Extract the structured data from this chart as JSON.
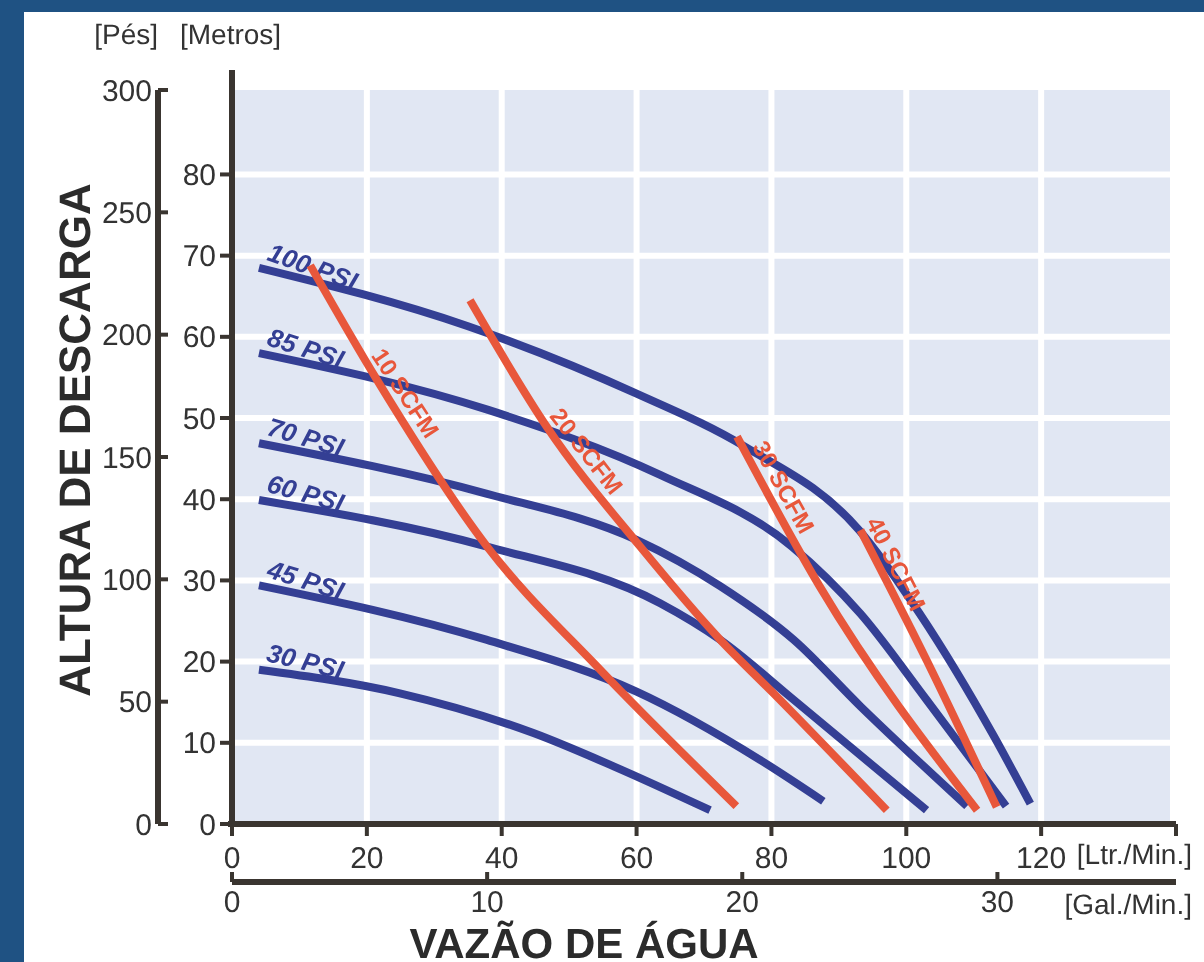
{
  "chart_data": {
    "type": "line",
    "ylabel": "[Metros]",
    "y2label": "[Pés]",
    "xlabel": "[Ltr./Min.]",
    "x2label": "[Gal./Min.]",
    "annotations": [
      "ALTURA DE DESCARGA",
      "VAZÃO DE ÁGUA"
    ],
    "xlim": [
      0,
      140
    ],
    "xticks": [
      0,
      20,
      40,
      60,
      80,
      100,
      120,
      {
        "value": 140,
        "label": null
      }
    ],
    "x2lim": [
      0,
      37
    ],
    "x2ticks": [
      0,
      10,
      20,
      30
    ],
    "ylim": [
      0,
      90.4
    ],
    "yticks": [
      0,
      10,
      20,
      30,
      40,
      50,
      60,
      70,
      80
    ],
    "y2lim": [
      0,
      300
    ],
    "y2ticks": [
      0,
      50,
      100,
      150,
      200,
      250,
      300
    ],
    "grid": true,
    "marker": "none",
    "line_style": "solid",
    "series": [
      {
        "name": "100 PSI",
        "color": "#343f94",
        "x": [
          4,
          35,
          60,
          76,
          93,
          102,
          113,
          118.4
        ],
        "values": [
          68.5,
          61.3,
          53,
          46.5,
          36.2,
          25.9,
          10.8,
          2.5
        ]
      },
      {
        "name": "85 PSI",
        "color": "#343f94",
        "x": [
          4,
          38,
          63.5,
          83,
          93.2,
          103,
          114.8
        ],
        "values": [
          58,
          51,
          43,
          34.2,
          25.9,
          15.3,
          2.2
        ]
      },
      {
        "name": "70 PSI",
        "color": "#343f94",
        "x": [
          4,
          37.7,
          60,
          72.4,
          83.3,
          93.2,
          109
        ],
        "values": [
          46.9,
          40.7,
          35,
          29.3,
          22.7,
          14.5,
          2.2
        ]
      },
      {
        "name": "60 PSI",
        "color": "#343f94",
        "x": [
          4,
          37.7,
          63.5,
          72.4,
          83.3,
          103
        ],
        "values": [
          39.9,
          34.2,
          27.2,
          22.7,
          15.3,
          1.7
        ]
      },
      {
        "name": "45 PSI",
        "color": "#343f94",
        "x": [
          4,
          37.7,
          60,
          78.3,
          87.7
        ],
        "values": [
          29.4,
          22.7,
          16.3,
          7.9,
          2.8
        ]
      },
      {
        "name": "30 PSI",
        "color": "#343f94",
        "x": [
          4,
          24.9,
          44.7,
          56.6,
          70.9
        ],
        "values": [
          19,
          16.1,
          11.2,
          7.1,
          1.7
        ]
      },
      {
        "name": "10 SCFM",
        "color": "#e8573b",
        "x": [
          11.6,
          21.5,
          37.8,
          54.6,
          74.8
        ],
        "values": [
          68.8,
          54.7,
          34.2,
          19,
          2.2
        ]
      },
      {
        "name": "20 SCFM",
        "color": "#e8573b",
        "x": [
          35.3,
          46.7,
          60.5,
          72.4,
          80.3,
          97.1
        ],
        "values": [
          64.5,
          48.9,
          34.2,
          22.7,
          16.1,
          1.7
        ]
      },
      {
        "name": "30 SCFM",
        "color": "#e8573b",
        "x": [
          74.9,
          87.2,
          110.5
        ],
        "values": [
          47.7,
          29.2,
          1.7
        ]
      },
      {
        "name": "40 SCFM",
        "color": "#e8573b",
        "x": [
          93.2,
          103,
          113.4
        ],
        "values": [
          36.2,
          20.2,
          2.1
        ]
      }
    ]
  }
}
